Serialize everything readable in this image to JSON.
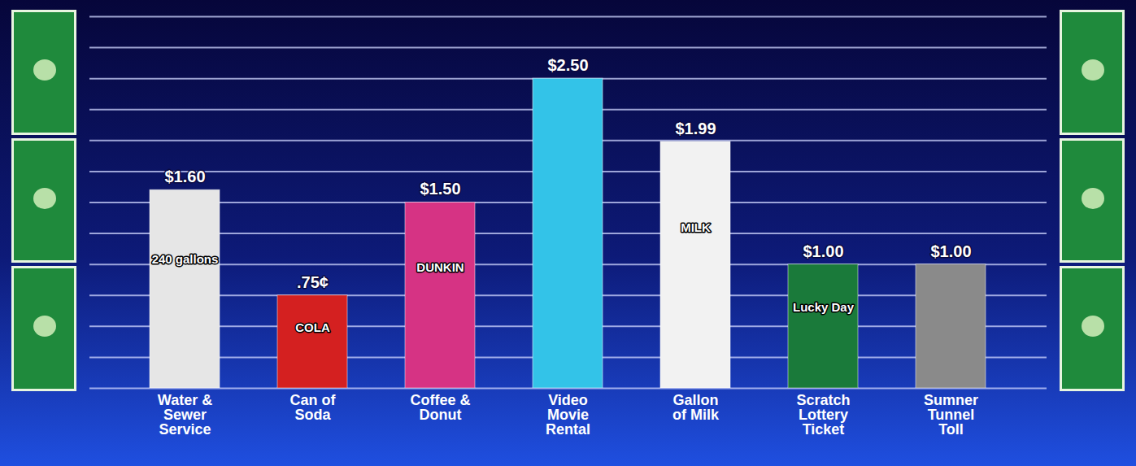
{
  "chart_data": {
    "type": "bar",
    "categories": [
      "Water & Sewer Service",
      "Can of Soda",
      "Coffee & Donut",
      "Video Movie Rental",
      "Gallon of Milk",
      "Scratch Lottery Ticket",
      "Sumner Tunnel Toll"
    ],
    "values": [
      1.6,
      0.75,
      1.5,
      2.5,
      1.99,
      1.0,
      1.0
    ],
    "value_labels": [
      "$1.60",
      ".75¢",
      "$1.50",
      "$2.50",
      "$1.99",
      "$1.00",
      "$1.00"
    ],
    "colors": [
      "#e6e6e6",
      "#d42020",
      "#d63384",
      "#33c3e8",
      "#f2f2f2",
      "#1a7a3a",
      "#8a8a8a"
    ],
    "ylim": [
      0,
      3
    ],
    "yticks": [
      0,
      0.25,
      0.5,
      0.75,
      1,
      1.25,
      1.5,
      1.75,
      2,
      2.25,
      2.5,
      2.75,
      3
    ],
    "grid": true,
    "data_labels": true,
    "tick_labels": "x",
    "annotations": [
      {
        "category": "Water & Sewer Service",
        "text": "240 gallons"
      },
      {
        "category": "Can of Soda",
        "text": "COLA"
      },
      {
        "category": "Coffee & Donut",
        "text": "DUNKIN"
      },
      {
        "category": "Gallon of Milk",
        "text": "MILK"
      },
      {
        "category": "Scratch Lottery Ticket",
        "text": "Lucky Day"
      }
    ]
  }
}
